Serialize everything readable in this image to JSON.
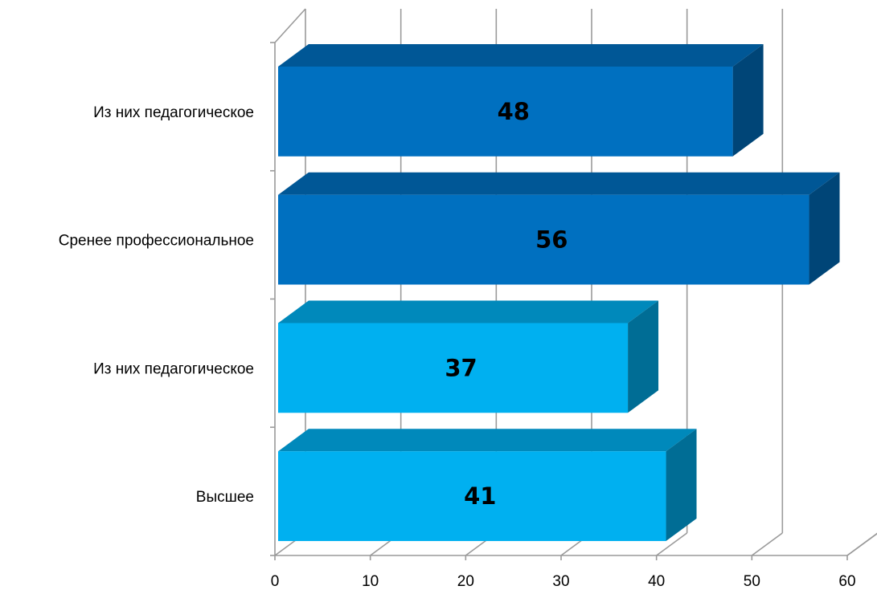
{
  "chart_data": {
    "type": "bar",
    "orientation": "horizontal",
    "style": "3d",
    "categories": [
      "Высшее",
      "Из них педагогическое",
      "Сренее профессиональное",
      "Из них педагогическое"
    ],
    "values": [
      41,
      37,
      56,
      48
    ],
    "data_labels": [
      "41",
      "37",
      "56",
      "48"
    ],
    "bar_colors": [
      "#00B0F0",
      "#00B0F0",
      "#0070C0",
      "#0070C0"
    ],
    "xlim": [
      0,
      60
    ],
    "x_ticks": [
      0,
      10,
      20,
      30,
      40,
      50,
      60
    ],
    "x_tick_labels": [
      "0",
      "10",
      "20",
      "30",
      "40",
      "50",
      "60"
    ],
    "grid": true,
    "legend": "none"
  }
}
